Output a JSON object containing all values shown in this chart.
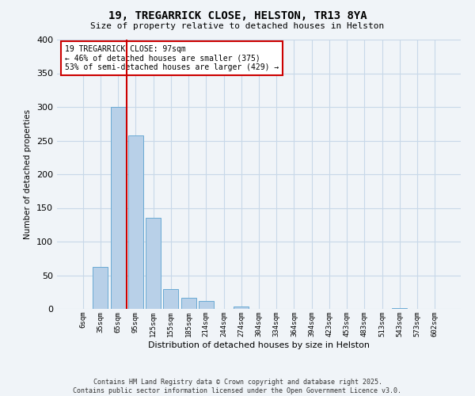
{
  "title": "19, TREGARRICK CLOSE, HELSTON, TR13 8YA",
  "subtitle": "Size of property relative to detached houses in Helston",
  "xlabel": "Distribution of detached houses by size in Helston",
  "ylabel": "Number of detached properties",
  "bar_labels": [
    "6sqm",
    "35sqm",
    "65sqm",
    "95sqm",
    "125sqm",
    "155sqm",
    "185sqm",
    "214sqm",
    "244sqm",
    "274sqm",
    "304sqm",
    "334sqm",
    "364sqm",
    "394sqm",
    "423sqm",
    "453sqm",
    "483sqm",
    "513sqm",
    "543sqm",
    "573sqm",
    "602sqm"
  ],
  "bar_values": [
    0,
    62,
    300,
    258,
    135,
    30,
    17,
    12,
    0,
    3,
    0,
    0,
    0,
    0,
    0,
    0,
    0,
    0,
    1,
    0,
    0
  ],
  "bar_color": "#b8d0e8",
  "bar_edgecolor": "#6aaad4",
  "vline_color": "#cc0000",
  "vline_index": 2.5,
  "annotation_text": "19 TREGARRICK CLOSE: 97sqm\n← 46% of detached houses are smaller (375)\n53% of semi-detached houses are larger (429) →",
  "annotation_box_facecolor": "#ffffff",
  "annotation_box_edgecolor": "#cc0000",
  "ylim": [
    0,
    400
  ],
  "yticks": [
    0,
    50,
    100,
    150,
    200,
    250,
    300,
    350,
    400
  ],
  "background_color": "#f0f4f8",
  "grid_color": "#c8d8e8",
  "footer_line1": "Contains HM Land Registry data © Crown copyright and database right 2025.",
  "footer_line2": "Contains public sector information licensed under the Open Government Licence v3.0."
}
